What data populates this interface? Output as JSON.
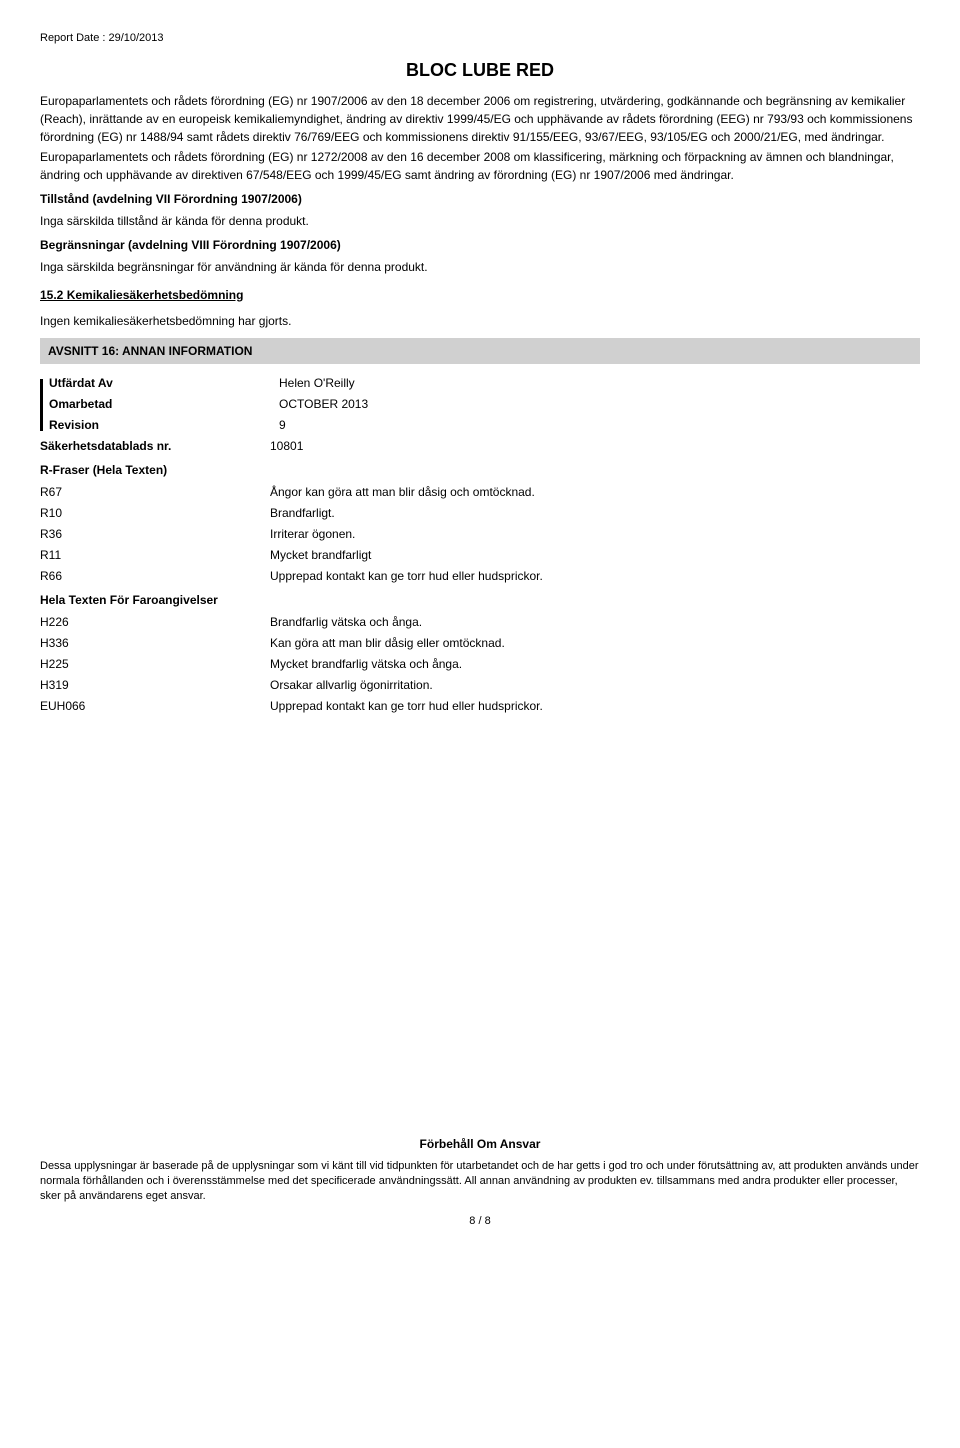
{
  "report_date": "Report Date : 29/10/2013",
  "title": "BLOC LUBE RED",
  "regulation_text_1": "Europaparlamentets och rådets förordning (EG) nr 1907/2006 av den 18 december 2006 om registrering, utvärdering, godkännande och begränsning av kemikalier (Reach), inrättande av en europeisk kemikaliemyndighet, ändring av direktiv 1999/45/EG och upphävande av rådets förordning (EEG) nr 793/93 och kommissionens förordning (EG) nr 1488/94 samt rådets direktiv 76/769/EEG och kommissionens direktiv 91/155/EEG, 93/67/EEG, 93/105/EG och 2000/21/EG, med ändringar.",
  "regulation_text_2": "Europaparlamentets och rådets förordning (EG) nr 1272/2008 av den 16 december 2008 om klassificering, märkning och förpackning av ämnen och blandningar, ändring och upphävande av direktiven 67/548/EEG och 1999/45/EG samt ändring av förordning (EG) nr 1907/2006 med ändringar.",
  "tillstand_heading": "Tillstånd (avdelning VII Förordning 1907/2006)",
  "tillstand_text": "Inga särskilda tillstånd är kända för denna produkt.",
  "begransningar_heading": "Begränsningar (avdelning VIII Förordning 1907/2006)",
  "begransningar_text": "Inga särskilda begränsningar för användning är kända för denna produkt.",
  "section_15_2": "15.2 Kemikaliesäkerhetsbedömning",
  "section_15_2_text": "Ingen kemikaliesäkerhetsbedömning har gjorts.",
  "section_16_title": "AVSNITT 16: ANNAN INFORMATION",
  "info": {
    "utfardat_label": "Utfärdat Av",
    "utfardat_value": "Helen O'Reilly",
    "omarbetad_label": "Omarbetad",
    "omarbetad_value": "OCTOBER 2013",
    "revision_label": "Revision",
    "revision_value": "9",
    "sds_label": "Säkerhetsdatablads nr.",
    "sds_value": "10801"
  },
  "r_fraser_heading": "R-Fraser (Hela Texten)",
  "r_phrases": [
    {
      "code": "R67",
      "text": "Ångor kan göra att man blir dåsig och omtöcknad."
    },
    {
      "code": "R10",
      "text": "Brandfarligt."
    },
    {
      "code": "R36",
      "text": "Irriterar ögonen."
    },
    {
      "code": "R11",
      "text": "Mycket brandfarligt"
    },
    {
      "code": "R66",
      "text": "Upprepad kontakt kan ge torr hud eller hudsprickor."
    }
  ],
  "hela_texten_heading": "Hela Texten För Faroangivelser",
  "h_phrases": [
    {
      "code": "H226",
      "text": "Brandfarlig vätska och ånga."
    },
    {
      "code": "H336",
      "text": "Kan göra att man blir dåsig eller omtöcknad."
    },
    {
      "code": "H225",
      "text": "Mycket brandfarlig vätska och ånga."
    },
    {
      "code": "H319",
      "text": "Orsakar allvarlig ögonirritation."
    },
    {
      "code": "EUH066",
      "text": "Upprepad kontakt kan ge torr hud eller hudsprickor."
    }
  ],
  "disclaimer_title": "Förbehåll Om Ansvar",
  "disclaimer_text": "Dessa upplysningar är baserade på de upplysningar som vi känt till vid tidpunkten för utarbetandet och de har getts i god tro och under förutsättning av, att produkten används under normala förhållanden och i överensstämmelse med det specificerade användningssätt. All annan användning av produkten ev. tillsammans med andra produkter eller processer, sker på användarens eget ansvar.",
  "page_number": "8 / 8"
}
